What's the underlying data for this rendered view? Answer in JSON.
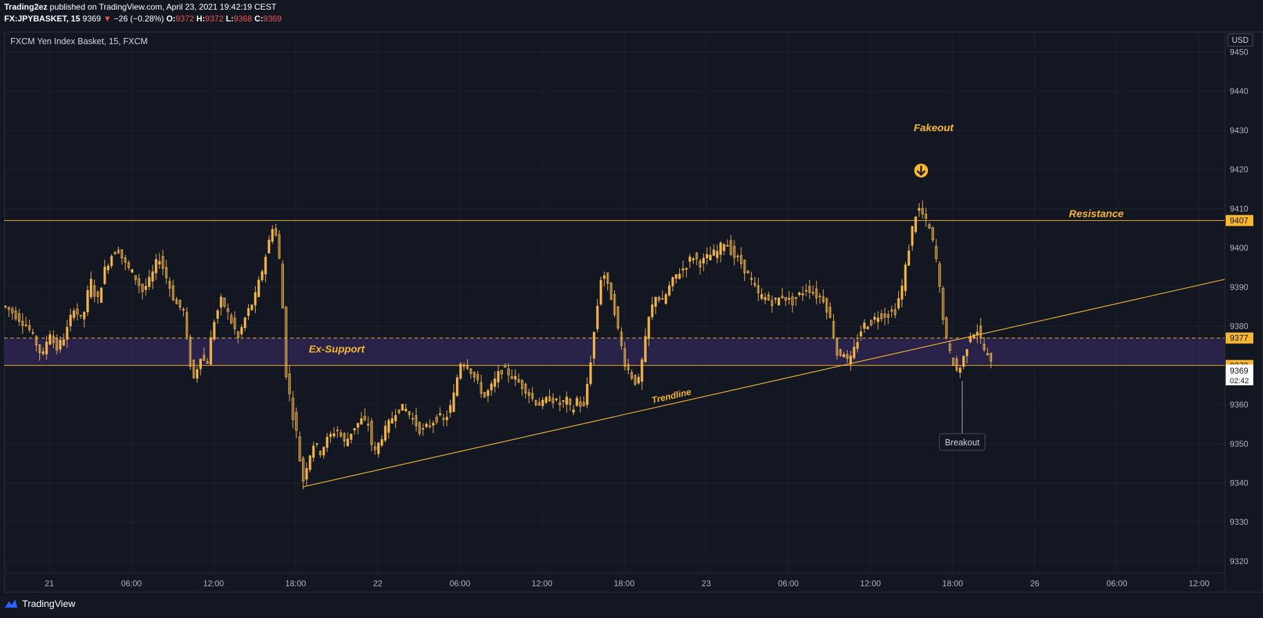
{
  "header": {
    "author": "Trading2ez",
    "published_text": "published on TradingView.com, April 23, 2021 19:42:19 CEST",
    "symbol_line": "FX:JPYBASKET, 15",
    "last_price": "9369",
    "change_arrow": "▼",
    "change": "−26 (−0.28%)",
    "open_label": "O:",
    "open_value": "9372",
    "high_label": "H:",
    "high_value": "9372",
    "low_label": "L:",
    "low_value": "9368",
    "close_label": "C:",
    "close_value": "9369"
  },
  "footer": {
    "brand": "TradingView"
  },
  "colors": {
    "background": "#131722",
    "candle": "#f0b34c",
    "accent": "#f7b731",
    "zone": "#3a2c6a",
    "grid": "#1e2230"
  },
  "chart_data": {
    "type": "candlestick",
    "title": "FXCM Yen Index Basket, 15, FXCM",
    "currency": "USD",
    "ylim": [
      9317,
      9455
    ],
    "y_ticks": [
      9450,
      9440,
      9430,
      9420,
      9410,
      9400,
      9390,
      9380,
      9360,
      9350,
      9340,
      9330,
      9320
    ],
    "x_ticks": [
      {
        "label": "21",
        "t": 0
      },
      {
        "label": "06:00",
        "t": 6
      },
      {
        "label": "12:00",
        "t": 12
      },
      {
        "label": "18:00",
        "t": 18
      },
      {
        "label": "22",
        "t": 24
      },
      {
        "label": "06:00",
        "t": 30
      },
      {
        "label": "12:00",
        "t": 36
      },
      {
        "label": "18:00",
        "t": 42
      },
      {
        "label": "23",
        "t": 48
      },
      {
        "label": "06:00",
        "t": 54
      },
      {
        "label": "12:00",
        "t": 60
      },
      {
        "label": "18:00",
        "t": 66
      },
      {
        "label": "26",
        "t": 72
      },
      {
        "label": "06:00",
        "t": 78
      },
      {
        "label": "12:00",
        "t": 84
      }
    ],
    "xlim": [
      -3.3,
      85.9
    ],
    "price_path": [
      [
        -3.2,
        9385
      ],
      [
        -2.5,
        9383
      ],
      [
        -1.6,
        9380
      ],
      [
        -1.0,
        9376
      ],
      [
        -0.5,
        9372
      ],
      [
        0,
        9379
      ],
      [
        0.5,
        9374
      ],
      [
        1.2,
        9378
      ],
      [
        1.8,
        9385
      ],
      [
        2.4,
        9381
      ],
      [
        3.0,
        9392
      ],
      [
        3.5,
        9386
      ],
      [
        4.0,
        9394
      ],
      [
        4.5,
        9398
      ],
      [
        5.0,
        9400
      ],
      [
        5.5,
        9396
      ],
      [
        6.2,
        9393
      ],
      [
        6.8,
        9389
      ],
      [
        7.4,
        9392
      ],
      [
        8.0,
        9398
      ],
      [
        8.6,
        9392
      ],
      [
        9.2,
        9386
      ],
      [
        9.8,
        9384
      ],
      [
        10.2,
        9372
      ],
      [
        10.6,
        9366
      ],
      [
        11.0,
        9373
      ],
      [
        11.5,
        9370
      ],
      [
        12.0,
        9381
      ],
      [
        12.6,
        9387
      ],
      [
        13.2,
        9382
      ],
      [
        13.8,
        9377
      ],
      [
        14.4,
        9383
      ],
      [
        15.0,
        9387
      ],
      [
        15.6,
        9395
      ],
      [
        16.0,
        9401
      ],
      [
        16.4,
        9407
      ],
      [
        16.8,
        9397
      ],
      [
        17.0,
        9388
      ],
      [
        17.3,
        9368
      ],
      [
        17.7,
        9359
      ],
      [
        18.1,
        9352
      ],
      [
        18.5,
        9340
      ],
      [
        18.9,
        9346
      ],
      [
        19.3,
        9350
      ],
      [
        19.8,
        9348
      ],
      [
        20.3,
        9351
      ],
      [
        21.0,
        9354
      ],
      [
        21.6,
        9350
      ],
      [
        22.2,
        9354
      ],
      [
        22.8,
        9356
      ],
      [
        23.3,
        9355
      ],
      [
        23.7,
        9347
      ],
      [
        24.3,
        9352
      ],
      [
        24.8,
        9355
      ],
      [
        25.4,
        9359
      ],
      [
        26.0,
        9359
      ],
      [
        26.6,
        9356
      ],
      [
        27.2,
        9353
      ],
      [
        27.8,
        9355
      ],
      [
        28.4,
        9357
      ],
      [
        28.8,
        9356
      ],
      [
        29.2,
        9358
      ],
      [
        29.6,
        9363
      ],
      [
        30.0,
        9371
      ],
      [
        30.6,
        9370
      ],
      [
        31.2,
        9366
      ],
      [
        31.8,
        9362
      ],
      [
        32.4,
        9365
      ],
      [
        33.0,
        9369
      ],
      [
        33.6,
        9368
      ],
      [
        34.2,
        9366
      ],
      [
        34.8,
        9364
      ],
      [
        35.4,
        9361
      ],
      [
        36.0,
        9360
      ],
      [
        36.6,
        9362
      ],
      [
        37.2,
        9360
      ],
      [
        37.8,
        9361
      ],
      [
        38.2,
        9358
      ],
      [
        38.6,
        9362
      ],
      [
        39.0,
        9358
      ],
      [
        39.5,
        9370
      ],
      [
        40.0,
        9384
      ],
      [
        40.4,
        9395
      ],
      [
        40.8,
        9390
      ],
      [
        41.2,
        9386
      ],
      [
        41.6,
        9378
      ],
      [
        42.1,
        9370
      ],
      [
        42.6,
        9367
      ],
      [
        43.0,
        9365
      ],
      [
        43.4,
        9373
      ],
      [
        43.8,
        9382
      ],
      [
        44.3,
        9388
      ],
      [
        44.8,
        9386
      ],
      [
        45.3,
        9390
      ],
      [
        45.8,
        9393
      ],
      [
        46.4,
        9395
      ],
      [
        47.0,
        9398
      ],
      [
        47.6,
        9396
      ],
      [
        48.2,
        9398
      ],
      [
        48.8,
        9399
      ],
      [
        49.4,
        9402
      ],
      [
        50.0,
        9398
      ],
      [
        50.6,
        9396
      ],
      [
        51.2,
        9392
      ],
      [
        51.8,
        9388
      ],
      [
        52.4,
        9387
      ],
      [
        53.0,
        9386
      ],
      [
        53.6,
        9388
      ],
      [
        54.2,
        9386
      ],
      [
        54.8,
        9388
      ],
      [
        55.4,
        9390
      ],
      [
        56.0,
        9388
      ],
      [
        56.6,
        9387
      ],
      [
        57.2,
        9380
      ],
      [
        57.6,
        9372
      ],
      [
        58.0,
        9374
      ],
      [
        58.4,
        9370
      ],
      [
        58.8,
        9374
      ],
      [
        59.4,
        9380
      ],
      [
        60.0,
        9381
      ],
      [
        60.6,
        9383
      ],
      [
        61.2,
        9383
      ],
      [
        61.8,
        9384
      ],
      [
        62.3,
        9390
      ],
      [
        62.8,
        9400
      ],
      [
        63.2,
        9408
      ],
      [
        63.6,
        9410
      ],
      [
        64.0,
        9407
      ],
      [
        64.4,
        9404
      ],
      [
        64.8,
        9397
      ],
      [
        65.2,
        9385
      ],
      [
        65.6,
        9375
      ],
      [
        66.0,
        9371
      ],
      [
        66.4,
        9368
      ],
      [
        66.8,
        9372
      ],
      [
        67.3,
        9378
      ],
      [
        67.8,
        9379
      ],
      [
        68.3,
        9374
      ],
      [
        68.7,
        9371
      ],
      [
        69.0,
        9369
      ]
    ],
    "resistance": {
      "label": "Resistance",
      "value": 9407
    },
    "ex_support": {
      "label": "Ex-Support",
      "upper": 9377,
      "lower": 9370
    },
    "trendline": {
      "label": "Trendline",
      "from": [
        18.5,
        9339
      ],
      "to": [
        85.9,
        9392
      ]
    },
    "annotations": {
      "fakeout": "Fakeout",
      "fakeout_t": 63.7,
      "breakout": "Breakout",
      "breakout_t": 66.7
    },
    "price_labels": {
      "resistance": "9407",
      "zone_top": "9377",
      "zone_bottom": "9370",
      "last": "9369",
      "countdown": "02:42"
    }
  }
}
